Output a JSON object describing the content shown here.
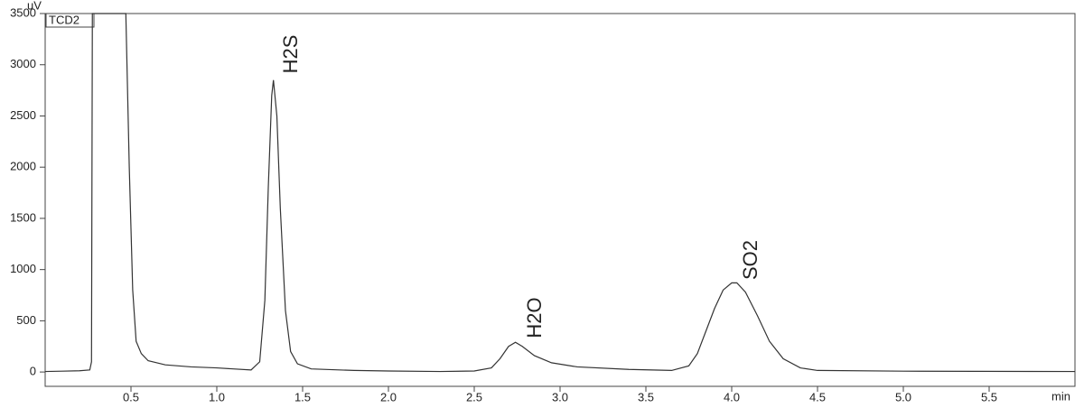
{
  "chart_data": {
    "type": "line",
    "y_label": "uV",
    "x_label": "min",
    "detector": "TCD2",
    "annotations": [
      "H2S",
      "H2O",
      "SO2"
    ],
    "color": "#333333",
    "x": [
      0,
      0.1,
      0.2,
      0.26,
      0.27,
      0.275,
      0.47,
      0.49,
      0.51,
      0.53,
      0.56,
      0.6,
      0.7,
      0.85,
      1.0,
      1.2,
      1.25,
      1.28,
      1.3,
      1.32,
      1.33,
      1.35,
      1.37,
      1.4,
      1.43,
      1.47,
      1.55,
      1.8,
      2.0,
      2.3,
      2.5,
      2.6,
      2.65,
      2.7,
      2.74,
      2.78,
      2.85,
      2.95,
      3.1,
      3.4,
      3.65,
      3.75,
      3.8,
      3.85,
      3.9,
      3.95,
      4.0,
      4.03,
      4.08,
      4.15,
      4.22,
      4.3,
      4.4,
      4.5,
      5.0,
      6.0
    ],
    "values": [
      5,
      8,
      12,
      20,
      100,
      3500,
      3500,
      2000,
      800,
      300,
      180,
      110,
      70,
      50,
      40,
      20,
      100,
      700,
      1800,
      2700,
      2850,
      2500,
      1600,
      600,
      200,
      80,
      30,
      15,
      10,
      5,
      10,
      40,
      130,
      250,
      290,
      250,
      160,
      90,
      50,
      25,
      15,
      60,
      180,
      400,
      620,
      800,
      870,
      870,
      780,
      550,
      300,
      130,
      40,
      15,
      8,
      5
    ],
    "xlim": [
      0,
      6.0
    ],
    "ylim": [
      -140,
      3500
    ],
    "xticks": [
      0.5,
      {
        "value": 1,
        "label": "1.0"
      },
      1.5,
      {
        "value": 2,
        "label": "2.0"
      },
      2.5,
      {
        "value": 3,
        "label": "3.0"
      },
      3.5,
      {
        "value": 4,
        "label": "4.0"
      },
      4.5,
      {
        "value": 5,
        "label": "5.0"
      },
      5.5
    ],
    "yticks": [
      0,
      500,
      1000,
      1500,
      2000,
      2500,
      3000,
      3500
    ]
  }
}
